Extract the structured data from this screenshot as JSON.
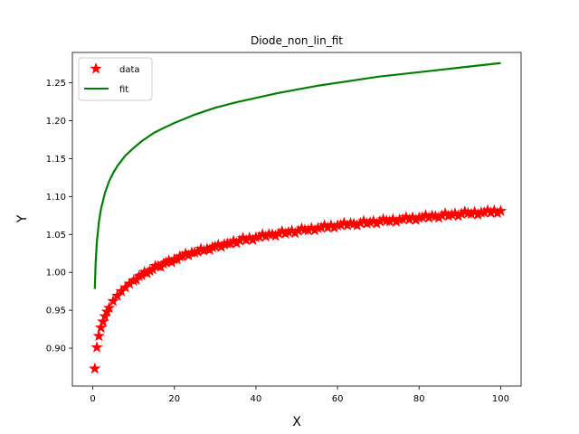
{
  "chart_data": {
    "type": "line",
    "title": "Diode_non_lin_fit",
    "xlabel": "X",
    "ylabel": "Y",
    "xlim": [
      -5,
      105
    ],
    "ylim": [
      0.85,
      1.29
    ],
    "xticks": [
      0,
      20,
      40,
      60,
      80,
      100
    ],
    "yticks": [
      0.9,
      0.95,
      1.0,
      1.05,
      1.1,
      1.15,
      1.2,
      1.25
    ],
    "xtick_labels": [
      "0",
      "20",
      "40",
      "60",
      "80",
      "100"
    ],
    "ytick_labels": [
      "0.90",
      "0.95",
      "1.00",
      "1.05",
      "1.10",
      "1.15",
      "1.20",
      "1.25"
    ],
    "grid": false,
    "legend_position": "top-left",
    "series": [
      {
        "name": "data",
        "style": "star-markers",
        "color": "#ff0000",
        "x": [
          0.5,
          1,
          1.5,
          2,
          2.5,
          3,
          3.5,
          4,
          5,
          6,
          7,
          8,
          9,
          10,
          12,
          14,
          16,
          18,
          20,
          22,
          25,
          28,
          30,
          33,
          36,
          40,
          44,
          48,
          52,
          56,
          60,
          64,
          68,
          72,
          76,
          80,
          84,
          88,
          92,
          96,
          100
        ],
        "y": [
          0.873,
          0.901,
          0.916,
          0.927,
          0.935,
          0.942,
          0.948,
          0.953,
          0.962,
          0.969,
          0.975,
          0.98,
          0.985,
          0.989,
          0.996,
          1.002,
          1.008,
          1.013,
          1.017,
          1.021,
          1.026,
          1.031,
          1.034,
          1.038,
          1.042,
          1.046,
          1.05,
          1.053,
          1.056,
          1.059,
          1.062,
          1.064,
          1.066,
          1.068,
          1.07,
          1.072,
          1.074,
          1.076,
          1.078,
          1.079,
          1.081
        ]
      },
      {
        "name": "fit",
        "style": "line",
        "color": "#008000",
        "x": [
          0.5,
          0.7,
          1,
          1.5,
          2,
          3,
          4,
          5,
          6,
          8,
          10,
          12,
          15,
          18,
          20,
          25,
          30,
          35,
          40,
          45,
          50,
          55,
          60,
          65,
          70,
          75,
          80,
          85,
          90,
          95,
          100
        ],
        "y": [
          0.978,
          1.012,
          1.04,
          1.066,
          1.083,
          1.105,
          1.12,
          1.131,
          1.14,
          1.154,
          1.164,
          1.173,
          1.184,
          1.192,
          1.197,
          1.208,
          1.217,
          1.224,
          1.23,
          1.236,
          1.241,
          1.246,
          1.25,
          1.254,
          1.258,
          1.261,
          1.264,
          1.267,
          1.27,
          1.273,
          1.276
        ]
      }
    ]
  }
}
